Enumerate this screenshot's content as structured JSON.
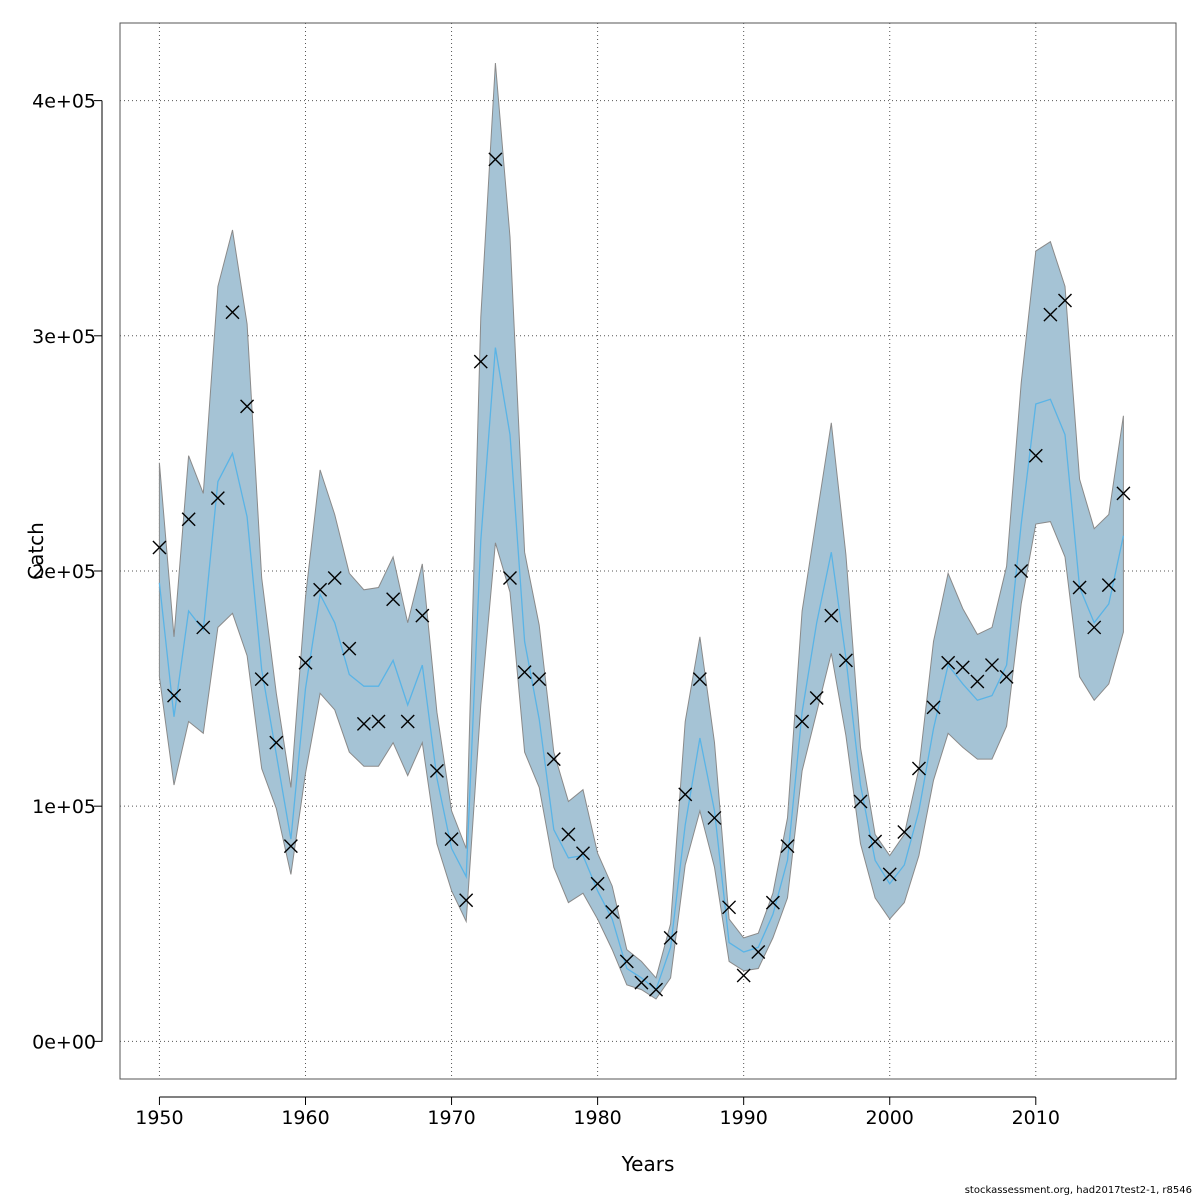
{
  "chart_data": {
    "type": "line",
    "xlabel": "Years",
    "ylabel": "Catch",
    "xlim": [
      1947.3,
      2019.6
    ],
    "ylim": [
      -16000,
      433000
    ],
    "x_ticks": [
      1950,
      1960,
      1970,
      1980,
      1990,
      2000,
      2010
    ],
    "x_tick_labels": [
      "1950",
      "1960",
      "1970",
      "1980",
      "1990",
      "2000",
      "2010"
    ],
    "y_ticks": [
      0,
      100000,
      200000,
      300000,
      400000
    ],
    "y_tick_labels": [
      "0e+00",
      "1e+05",
      "2e+05",
      "3e+05",
      "4e+05"
    ],
    "grid": true,
    "colors": {
      "band": "#a5c3d5",
      "band_edge": "#8a8a8a",
      "estimate_line": "#5ab4e6",
      "observed_marker": "#000000",
      "grid": "#555555"
    },
    "years": [
      1950,
      1951,
      1952,
      1953,
      1954,
      1955,
      1956,
      1957,
      1958,
      1959,
      1960,
      1961,
      1962,
      1963,
      1964,
      1965,
      1966,
      1967,
      1968,
      1969,
      1970,
      1971,
      1972,
      1973,
      1974,
      1975,
      1976,
      1977,
      1978,
      1979,
      1980,
      1981,
      1982,
      1983,
      1984,
      1985,
      1986,
      1987,
      1988,
      1989,
      1990,
      1991,
      1992,
      1993,
      1994,
      1995,
      1996,
      1997,
      1998,
      1999,
      2000,
      2001,
      2002,
      2003,
      2004,
      2005,
      2006,
      2007,
      2008,
      2009,
      2010,
      2011,
      2012,
      2013,
      2014,
      2015,
      2016
    ],
    "series": [
      {
        "role": "observed",
        "marker": "x",
        "values": [
          210000,
          147000,
          222000,
          176000,
          231000,
          310000,
          270000,
          154000,
          127000,
          83000,
          161000,
          192000,
          197000,
          167000,
          135000,
          136000,
          188000,
          136000,
          181000,
          115000,
          86000,
          60000,
          289000,
          375000,
          197000,
          157000,
          154000,
          120000,
          88000,
          80000,
          67000,
          55000,
          34000,
          25000,
          22000,
          44000,
          105000,
          154000,
          95000,
          57000,
          28000,
          38000,
          59000,
          83000,
          136000,
          146000,
          181000,
          162000,
          102000,
          85000,
          71000,
          89000,
          116000,
          142000,
          161000,
          159000,
          153000,
          160000,
          155000,
          200000,
          249000,
          309000,
          315000,
          193000,
          176000,
          194000,
          233000
        ]
      },
      {
        "role": "estimate",
        "values": [
          195000,
          138000,
          183000,
          175000,
          238000,
          250000,
          223000,
          158000,
          122000,
          86000,
          150000,
          190000,
          178000,
          156000,
          151000,
          151000,
          162000,
          143000,
          160000,
          112000,
          82000,
          70000,
          213000,
          295000,
          258000,
          170000,
          137000,
          90000,
          78000,
          79000,
          64000,
          52000,
          31000,
          27000,
          22000,
          40000,
          92000,
          129000,
          98000,
          42000,
          38000,
          40000,
          54000,
          77000,
          140000,
          178000,
          208000,
          163000,
          109000,
          77000,
          67000,
          75000,
          98000,
          133000,
          160000,
          152000,
          145000,
          147000,
          160000,
          220000,
          271000,
          273000,
          258000,
          193000,
          178000,
          186000,
          215000
        ]
      },
      {
        "role": "upper_bound",
        "values": [
          246000,
          172000,
          249000,
          233000,
          321000,
          345000,
          305000,
          197000,
          148000,
          108000,
          189000,
          243000,
          224000,
          199000,
          192000,
          193000,
          206000,
          178000,
          203000,
          140000,
          98000,
          82000,
          308000,
          416000,
          342000,
          208000,
          177000,
          123000,
          102000,
          107000,
          80000,
          66000,
          39000,
          34000,
          27000,
          50000,
          136000,
          172000,
          127000,
          52000,
          44000,
          46000,
          63000,
          95000,
          183000,
          223000,
          263000,
          207000,
          125000,
          88000,
          79000,
          88000,
          116000,
          170000,
          199000,
          184000,
          173000,
          176000,
          202000,
          280000,
          336000,
          340000,
          321000,
          239000,
          218000,
          224000,
          266000
        ]
      },
      {
        "role": "lower_bound",
        "values": [
          155000,
          109000,
          136000,
          131000,
          176000,
          182000,
          164000,
          116000,
          99000,
          71000,
          114000,
          148000,
          141000,
          123000,
          117000,
          117000,
          127000,
          113000,
          127000,
          84000,
          64000,
          51000,
          143000,
          212000,
          191000,
          123000,
          108000,
          74000,
          59000,
          63000,
          52000,
          39000,
          24000,
          22000,
          18000,
          27000,
          75000,
          98000,
          74000,
          34000,
          30000,
          31000,
          44000,
          61000,
          115000,
          140000,
          165000,
          130000,
          84000,
          61000,
          52000,
          59000,
          79000,
          111000,
          131000,
          125000,
          120000,
          120000,
          134000,
          186000,
          220000,
          221000,
          206000,
          155000,
          145000,
          152000,
          174000
        ]
      }
    ]
  },
  "footer": "stockassessment.org, had2017test2-1, r8546"
}
